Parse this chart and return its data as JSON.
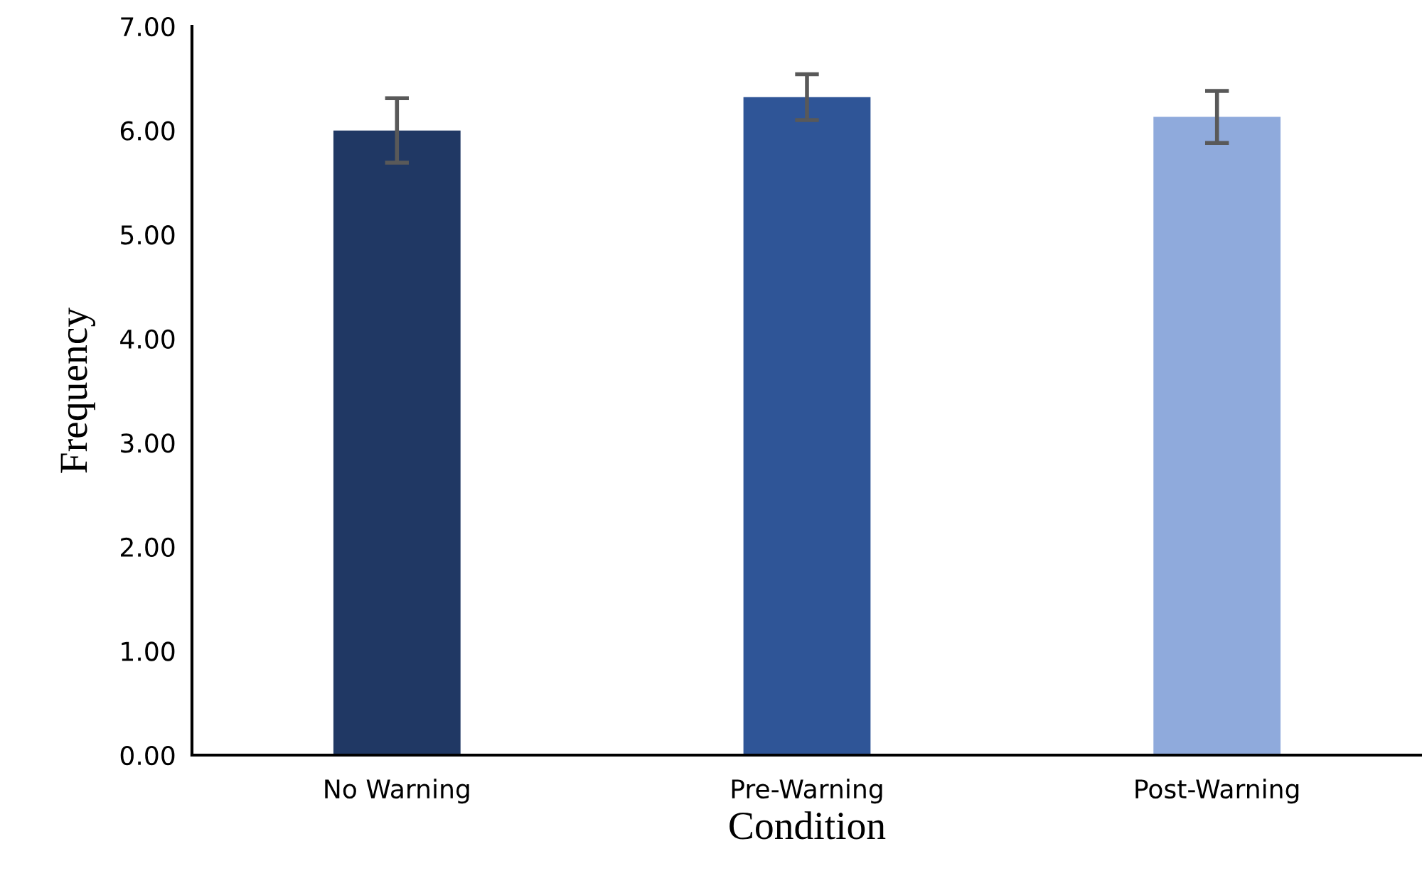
{
  "chart_data": {
    "type": "bar",
    "xlabel": "Condition",
    "ylabel": "Frequency",
    "categories": [
      "No Warning",
      "Pre-Warning",
      "Post-Warning"
    ],
    "values": [
      6.0,
      6.32,
      6.13
    ],
    "colors": [
      "#203864",
      "#2f5597",
      "#8faadc"
    ],
    "errors": [
      0.31,
      0.22,
      0.25
    ],
    "ylim": [
      0,
      7
    ],
    "yticks": [
      {
        "value": 0,
        "label": "0.00"
      },
      {
        "value": 1,
        "label": "1.00"
      },
      {
        "value": 2,
        "label": "2.00"
      },
      {
        "value": 3,
        "label": "3.00"
      },
      {
        "value": 4,
        "label": "4.00"
      },
      {
        "value": 5,
        "label": "5.00"
      },
      {
        "value": 6,
        "label": "6.00"
      },
      {
        "value": 7,
        "label": "7.00"
      }
    ],
    "grid": false,
    "legend": false
  }
}
